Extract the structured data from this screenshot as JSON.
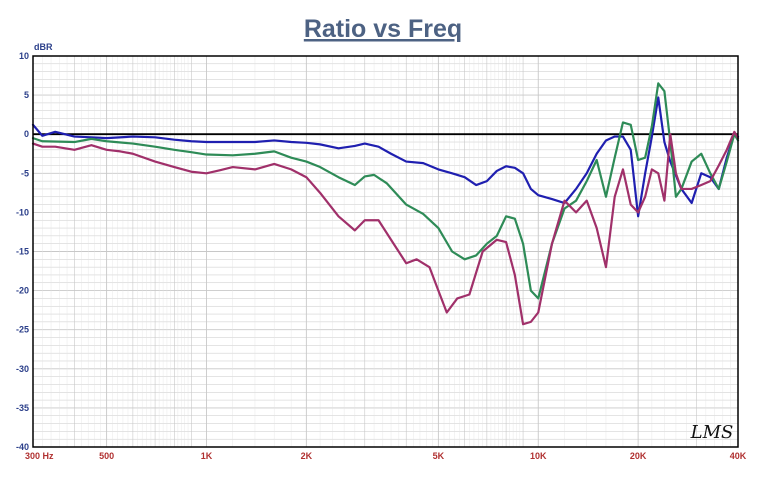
{
  "chart_data": {
    "type": "line",
    "title": "Ratio vs Freq",
    "ylabel": "dBR",
    "xlabel": "",
    "xscale": "log",
    "xlim": [
      300,
      40000
    ],
    "ylim": [
      -40,
      10
    ],
    "grid": true,
    "legend": "none",
    "logo_text": "LMS",
    "zero_line": 0,
    "yticks": [
      10,
      5,
      0,
      -5,
      -10,
      -15,
      -20,
      -25,
      -30,
      -35,
      -40
    ],
    "ytick_labels": [
      "10",
      "5",
      "0",
      "-5",
      "-10",
      "-15",
      "-20",
      "-25",
      "-30",
      "-35",
      "-40"
    ],
    "xticks": [
      300,
      500,
      1000,
      2000,
      5000,
      10000,
      20000,
      40000
    ],
    "xtick_labels": [
      "300 Hz",
      "500",
      "1K",
      "2K",
      "5K",
      "10K",
      "20K",
      "40K"
    ],
    "colors": {
      "title": "#4d6283",
      "ytick": "#2b3f8a",
      "xtick": "#b03030",
      "grid": "#c8c8c8",
      "frame": "#000000"
    },
    "series": [
      {
        "color": "#1f1fb0",
        "points": [
          [
            300,
            1.2
          ],
          [
            320,
            -0.2
          ],
          [
            350,
            0.3
          ],
          [
            400,
            -0.3
          ],
          [
            450,
            -0.4
          ],
          [
            500,
            -0.5
          ],
          [
            600,
            -0.3
          ],
          [
            700,
            -0.4
          ],
          [
            800,
            -0.7
          ],
          [
            900,
            -0.9
          ],
          [
            1000,
            -1.0
          ],
          [
            1200,
            -1.0
          ],
          [
            1400,
            -1.0
          ],
          [
            1600,
            -0.8
          ],
          [
            1800,
            -1.0
          ],
          [
            2000,
            -1.1
          ],
          [
            2200,
            -1.3
          ],
          [
            2500,
            -1.8
          ],
          [
            2800,
            -1.5
          ],
          [
            3000,
            -1.2
          ],
          [
            3300,
            -1.6
          ],
          [
            3600,
            -2.5
          ],
          [
            4000,
            -3.5
          ],
          [
            4500,
            -3.7
          ],
          [
            5000,
            -4.5
          ],
          [
            5500,
            -5.0
          ],
          [
            6000,
            -5.5
          ],
          [
            6500,
            -6.5
          ],
          [
            7000,
            -6.0
          ],
          [
            7500,
            -4.7
          ],
          [
            8000,
            -4.1
          ],
          [
            8500,
            -4.3
          ],
          [
            9000,
            -5.0
          ],
          [
            9500,
            -7.0
          ],
          [
            10000,
            -7.8
          ],
          [
            11000,
            -8.3
          ],
          [
            12000,
            -8.8
          ],
          [
            13000,
            -7.0
          ],
          [
            14000,
            -5.0
          ],
          [
            15000,
            -2.5
          ],
          [
            16000,
            -0.8
          ],
          [
            17000,
            -0.3
          ],
          [
            18000,
            -0.3
          ],
          [
            19000,
            -2.0
          ],
          [
            20000,
            -10.5
          ],
          [
            21000,
            -5.0
          ],
          [
            22000,
            -0.3
          ],
          [
            23000,
            4.7
          ],
          [
            24000,
            -1.0
          ],
          [
            25000,
            -3.5
          ],
          [
            27000,
            -7.0
          ],
          [
            29000,
            -8.8
          ],
          [
            31000,
            -5.0
          ],
          [
            33000,
            -5.5
          ],
          [
            35000,
            -7.0
          ],
          [
            37000,
            -3.0
          ],
          [
            39000,
            0.0
          ],
          [
            40000,
            -0.3
          ]
        ]
      },
      {
        "color": "#2e8b57",
        "points": [
          [
            300,
            -0.5
          ],
          [
            320,
            -0.9
          ],
          [
            400,
            -1.0
          ],
          [
            450,
            -0.6
          ],
          [
            500,
            -0.9
          ],
          [
            600,
            -1.2
          ],
          [
            700,
            -1.6
          ],
          [
            800,
            -2.0
          ],
          [
            900,
            -2.3
          ],
          [
            1000,
            -2.6
          ],
          [
            1200,
            -2.7
          ],
          [
            1400,
            -2.5
          ],
          [
            1600,
            -2.2
          ],
          [
            1800,
            -3.0
          ],
          [
            2000,
            -3.5
          ],
          [
            2200,
            -4.2
          ],
          [
            2500,
            -5.5
          ],
          [
            2800,
            -6.5
          ],
          [
            3000,
            -5.4
          ],
          [
            3200,
            -5.2
          ],
          [
            3500,
            -6.3
          ],
          [
            4000,
            -9.0
          ],
          [
            4500,
            -10.2
          ],
          [
            5000,
            -12.0
          ],
          [
            5500,
            -15.0
          ],
          [
            6000,
            -16.0
          ],
          [
            6500,
            -15.5
          ],
          [
            7000,
            -14.0
          ],
          [
            7500,
            -13.0
          ],
          [
            8000,
            -10.5
          ],
          [
            8500,
            -10.8
          ],
          [
            9000,
            -14.0
          ],
          [
            9500,
            -20.0
          ],
          [
            10000,
            -21.0
          ],
          [
            11000,
            -14.0
          ],
          [
            12000,
            -9.5
          ],
          [
            13000,
            -8.5
          ],
          [
            14000,
            -6.0
          ],
          [
            15000,
            -3.3
          ],
          [
            16000,
            -8.0
          ],
          [
            17000,
            -3.0
          ],
          [
            18000,
            1.5
          ],
          [
            19000,
            1.2
          ],
          [
            20000,
            -3.3
          ],
          [
            21000,
            -3.0
          ],
          [
            22000,
            1.0
          ],
          [
            23000,
            6.5
          ],
          [
            24000,
            5.5
          ],
          [
            25000,
            -1.0
          ],
          [
            26000,
            -8.0
          ],
          [
            27000,
            -7.0
          ],
          [
            29000,
            -3.5
          ],
          [
            31000,
            -2.5
          ],
          [
            33000,
            -5.0
          ],
          [
            35000,
            -7.0
          ],
          [
            37000,
            -3.5
          ],
          [
            39000,
            0.0
          ],
          [
            40000,
            -0.8
          ]
        ]
      },
      {
        "color": "#a0306a",
        "points": [
          [
            300,
            -1.2
          ],
          [
            320,
            -1.6
          ],
          [
            350,
            -1.6
          ],
          [
            400,
            -2.0
          ],
          [
            450,
            -1.4
          ],
          [
            500,
            -2.0
          ],
          [
            550,
            -2.2
          ],
          [
            600,
            -2.5
          ],
          [
            700,
            -3.5
          ],
          [
            800,
            -4.2
          ],
          [
            900,
            -4.8
          ],
          [
            1000,
            -5.0
          ],
          [
            1100,
            -4.6
          ],
          [
            1200,
            -4.2
          ],
          [
            1400,
            -4.5
          ],
          [
            1600,
            -3.8
          ],
          [
            1800,
            -4.5
          ],
          [
            2000,
            -5.5
          ],
          [
            2200,
            -7.5
          ],
          [
            2500,
            -10.5
          ],
          [
            2800,
            -12.3
          ],
          [
            3000,
            -11.0
          ],
          [
            3300,
            -11.0
          ],
          [
            3600,
            -13.5
          ],
          [
            4000,
            -16.5
          ],
          [
            4300,
            -16.0
          ],
          [
            4700,
            -17.0
          ],
          [
            5000,
            -20.0
          ],
          [
            5300,
            -22.8
          ],
          [
            5700,
            -21.0
          ],
          [
            6200,
            -20.5
          ],
          [
            6800,
            -15.0
          ],
          [
            7500,
            -13.5
          ],
          [
            8000,
            -13.8
          ],
          [
            8500,
            -18.0
          ],
          [
            9000,
            -24.3
          ],
          [
            9500,
            -24.0
          ],
          [
            10000,
            -22.8
          ],
          [
            11000,
            -14.0
          ],
          [
            12000,
            -8.5
          ],
          [
            13000,
            -10.0
          ],
          [
            14000,
            -8.5
          ],
          [
            15000,
            -12.0
          ],
          [
            16000,
            -17.0
          ],
          [
            17000,
            -8.0
          ],
          [
            18000,
            -4.5
          ],
          [
            19000,
            -9.0
          ],
          [
            20000,
            -10.0
          ],
          [
            21000,
            -8.0
          ],
          [
            22000,
            -4.5
          ],
          [
            23000,
            -5.0
          ],
          [
            24000,
            -8.5
          ],
          [
            25000,
            0.0
          ],
          [
            26000,
            -5.0
          ],
          [
            27000,
            -7.0
          ],
          [
            29000,
            -7.0
          ],
          [
            31000,
            -6.5
          ],
          [
            33000,
            -6.0
          ],
          [
            35000,
            -4.0
          ],
          [
            37000,
            -2.0
          ],
          [
            39000,
            0.3
          ],
          [
            40000,
            -0.5
          ]
        ]
      }
    ]
  }
}
